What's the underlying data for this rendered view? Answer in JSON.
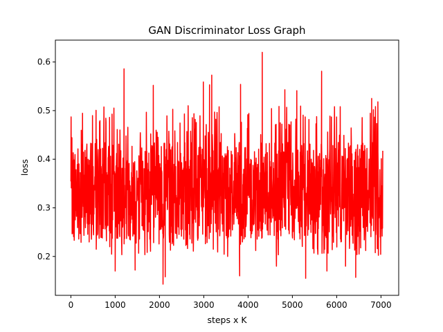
{
  "chart_data": {
    "type": "line",
    "title": "GAN Discriminator Loss Graph",
    "xlabel": "steps x K",
    "ylabel": "loss",
    "xlim": [
      -350,
      7400
    ],
    "ylim": [
      0.12,
      0.645
    ],
    "x_ticks": [
      0,
      1000,
      2000,
      3000,
      4000,
      5000,
      6000,
      7000
    ],
    "y_ticks": [
      0.2,
      0.3,
      0.4,
      0.5,
      0.6
    ],
    "x_tick_labels": [
      "0",
      "1000",
      "2000",
      "3000",
      "4000",
      "5000",
      "6000",
      "7000"
    ],
    "y_tick_labels": [
      "0.2",
      "0.3",
      "0.4",
      "0.5",
      "0.6"
    ],
    "grid": false,
    "series": [
      {
        "color": "#ff0000",
        "x_range": [
          0,
          7040
        ],
        "typical_band": [
          0.25,
          0.44
        ],
        "mean": 0.335,
        "min": 0.143,
        "max": 0.62,
        "peaks": [
          {
            "x": 1200,
            "y": 0.586
          },
          {
            "x": 1860,
            "y": 0.552
          },
          {
            "x": 2990,
            "y": 0.559
          },
          {
            "x": 3130,
            "y": 0.553
          },
          {
            "x": 3180,
            "y": 0.573
          },
          {
            "x": 3830,
            "y": 0.554
          },
          {
            "x": 4320,
            "y": 0.62
          },
          {
            "x": 4830,
            "y": 0.543
          },
          {
            "x": 5100,
            "y": 0.541
          },
          {
            "x": 5660,
            "y": 0.581
          },
          {
            "x": 6790,
            "y": 0.525
          },
          {
            "x": 6080,
            "y": 0.508
          },
          {
            "x": 6930,
            "y": 0.518
          }
        ],
        "troughs": [
          {
            "x": 1000,
            "y": 0.17
          },
          {
            "x": 1450,
            "y": 0.172
          },
          {
            "x": 2080,
            "y": 0.143
          },
          {
            "x": 2130,
            "y": 0.158
          },
          {
            "x": 3810,
            "y": 0.16
          },
          {
            "x": 5300,
            "y": 0.155
          },
          {
            "x": 5780,
            "y": 0.17
          },
          {
            "x": 6430,
            "y": 0.157
          },
          {
            "x": 4640,
            "y": 0.18
          },
          {
            "x": 6200,
            "y": 0.18
          }
        ]
      }
    ]
  }
}
